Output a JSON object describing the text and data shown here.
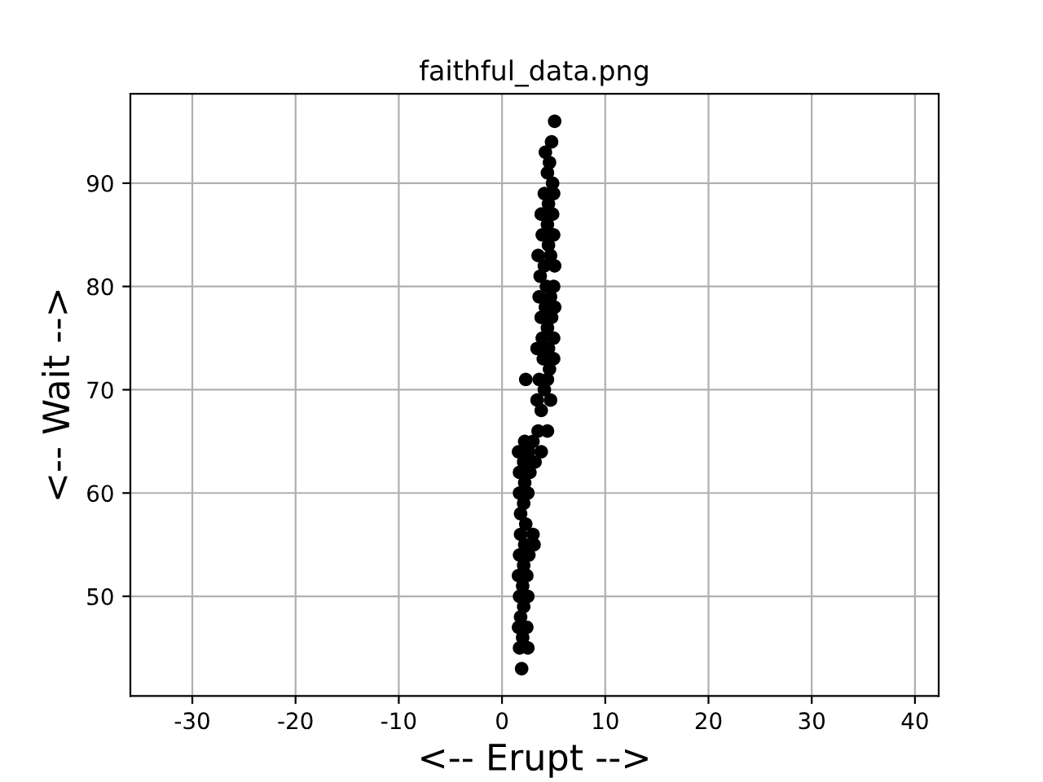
{
  "chart_data": {
    "type": "scatter",
    "title": "faithful_data.png",
    "xlabel": "<-- Erupt -->",
    "ylabel": "<-- Wait -->",
    "xlim": [
      -36,
      42.3
    ],
    "ylim": [
      40.35,
      98.65
    ],
    "xticks": [
      -30,
      -20,
      -10,
      0,
      10,
      20,
      30,
      40
    ],
    "yticks": [
      50,
      60,
      70,
      80,
      90
    ],
    "grid": true,
    "marker": "circle",
    "series": [
      {
        "color": "#000000",
        "x": [
          5.1,
          4.8,
          4.2,
          4.6,
          4.4,
          4.9,
          4.1,
          5.0,
          4.5,
          3.8,
          4.9,
          4.4,
          3.9,
          5.0,
          4.5,
          3.5,
          4.7,
          4.1,
          5.1,
          3.7,
          4.3,
          5.0,
          3.6,
          4.7,
          4.2,
          5.1,
          3.8,
          4.8,
          4.4,
          3.9,
          5.0,
          3.4,
          4.5,
          4.0,
          5.0,
          4.6,
          2.3,
          3.6,
          4.4,
          4.1,
          3.4,
          4.7,
          3.8,
          3.5,
          4.4,
          3.8,
          2.2,
          3.0,
          1.6,
          2.6,
          2.1,
          3.2,
          1.7,
          2.7,
          2.2,
          1.7,
          2.5,
          2.1,
          1.8,
          2.3,
          1.8,
          3.0,
          2.2,
          3.1,
          1.7,
          2.6,
          2.1,
          1.6,
          2.4,
          2.0,
          1.7,
          2.5,
          2.1,
          1.8,
          1.6,
          2.4,
          2.0,
          1.7,
          2.5,
          1.9
        ],
        "values": [
          96,
          94,
          93,
          92,
          91,
          90,
          89,
          89,
          88,
          87,
          87,
          86,
          85,
          85,
          84,
          83,
          83,
          82,
          82,
          81,
          80,
          80,
          79,
          79,
          78,
          78,
          77,
          77,
          76,
          75,
          75,
          74,
          74,
          73,
          73,
          72,
          71,
          71,
          71,
          70,
          69,
          69,
          68,
          66,
          66,
          64,
          65,
          65,
          64,
          64,
          63,
          63,
          62,
          62,
          61,
          60,
          60,
          59,
          58,
          57,
          56,
          56,
          55,
          55,
          54,
          54,
          53,
          52,
          52,
          51,
          50,
          50,
          49,
          48,
          47,
          47,
          46,
          45,
          45,
          43
        ]
      }
    ]
  }
}
